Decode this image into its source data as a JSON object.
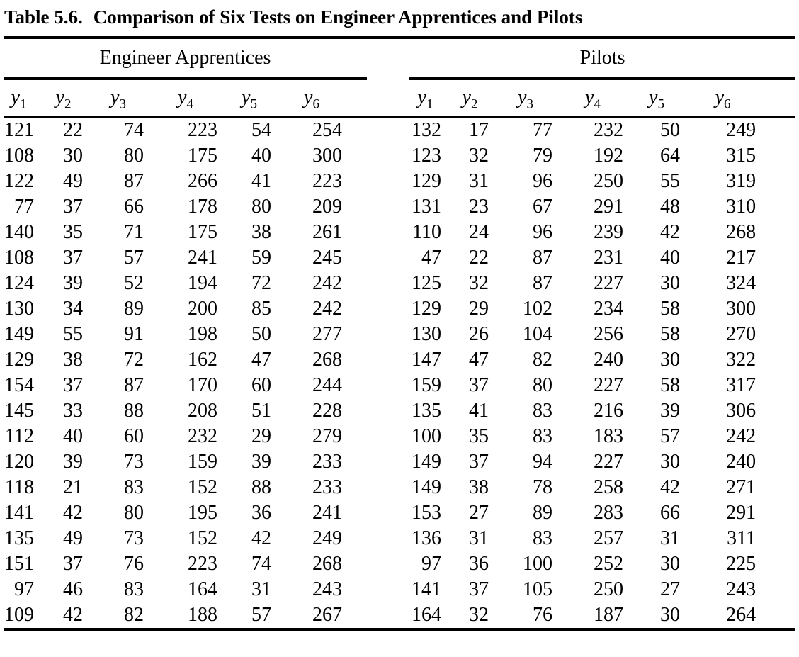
{
  "title": {
    "label": "Table 5.6.",
    "text": "Comparison of Six Tests on Engineer Apprentices and Pilots"
  },
  "table": {
    "variable_base": "y",
    "column_subscripts": [
      "1",
      "2",
      "3",
      "4",
      "5",
      "6"
    ],
    "groups": [
      {
        "name": "engineer_apprentices",
        "label": "Engineer Apprentices"
      },
      {
        "name": "pilots",
        "label": "Pilots"
      }
    ],
    "rows": [
      {
        "engineer_apprentices": [
          121,
          22,
          74,
          223,
          54,
          254
        ],
        "pilots": [
          132,
          17,
          77,
          232,
          50,
          249
        ]
      },
      {
        "engineer_apprentices": [
          108,
          30,
          80,
          175,
          40,
          300
        ],
        "pilots": [
          123,
          32,
          79,
          192,
          64,
          315
        ]
      },
      {
        "engineer_apprentices": [
          122,
          49,
          87,
          266,
          41,
          223
        ],
        "pilots": [
          129,
          31,
          96,
          250,
          55,
          319
        ]
      },
      {
        "engineer_apprentices": [
          77,
          37,
          66,
          178,
          80,
          209
        ],
        "pilots": [
          131,
          23,
          67,
          291,
          48,
          310
        ]
      },
      {
        "engineer_apprentices": [
          140,
          35,
          71,
          175,
          38,
          261
        ],
        "pilots": [
          110,
          24,
          96,
          239,
          42,
          268
        ]
      },
      {
        "engineer_apprentices": [
          108,
          37,
          57,
          241,
          59,
          245
        ],
        "pilots": [
          47,
          22,
          87,
          231,
          40,
          217
        ]
      },
      {
        "engineer_apprentices": [
          124,
          39,
          52,
          194,
          72,
          242
        ],
        "pilots": [
          125,
          32,
          87,
          227,
          30,
          324
        ]
      },
      {
        "engineer_apprentices": [
          130,
          34,
          89,
          200,
          85,
          242
        ],
        "pilots": [
          129,
          29,
          102,
          234,
          58,
          300
        ]
      },
      {
        "engineer_apprentices": [
          149,
          55,
          91,
          198,
          50,
          277
        ],
        "pilots": [
          130,
          26,
          104,
          256,
          58,
          270
        ]
      },
      {
        "engineer_apprentices": [
          129,
          38,
          72,
          162,
          47,
          268
        ],
        "pilots": [
          147,
          47,
          82,
          240,
          30,
          322
        ]
      },
      {
        "engineer_apprentices": [
          154,
          37,
          87,
          170,
          60,
          244
        ],
        "pilots": [
          159,
          37,
          80,
          227,
          58,
          317
        ]
      },
      {
        "engineer_apprentices": [
          145,
          33,
          88,
          208,
          51,
          228
        ],
        "pilots": [
          135,
          41,
          83,
          216,
          39,
          306
        ]
      },
      {
        "engineer_apprentices": [
          112,
          40,
          60,
          232,
          29,
          279
        ],
        "pilots": [
          100,
          35,
          83,
          183,
          57,
          242
        ]
      },
      {
        "engineer_apprentices": [
          120,
          39,
          73,
          159,
          39,
          233
        ],
        "pilots": [
          149,
          37,
          94,
          227,
          30,
          240
        ]
      },
      {
        "engineer_apprentices": [
          118,
          21,
          83,
          152,
          88,
          233
        ],
        "pilots": [
          149,
          38,
          78,
          258,
          42,
          271
        ]
      },
      {
        "engineer_apprentices": [
          141,
          42,
          80,
          195,
          36,
          241
        ],
        "pilots": [
          153,
          27,
          89,
          283,
          66,
          291
        ]
      },
      {
        "engineer_apprentices": [
          135,
          49,
          73,
          152,
          42,
          249
        ],
        "pilots": [
          136,
          31,
          83,
          257,
          31,
          311
        ]
      },
      {
        "engineer_apprentices": [
          151,
          37,
          76,
          223,
          74,
          268
        ],
        "pilots": [
          97,
          36,
          100,
          252,
          30,
          225
        ]
      },
      {
        "engineer_apprentices": [
          97,
          46,
          83,
          164,
          31,
          243
        ],
        "pilots": [
          141,
          37,
          105,
          250,
          27,
          243
        ]
      },
      {
        "engineer_apprentices": [
          109,
          42,
          82,
          188,
          57,
          267
        ],
        "pilots": [
          164,
          32,
          76,
          187,
          30,
          264
        ]
      }
    ]
  }
}
